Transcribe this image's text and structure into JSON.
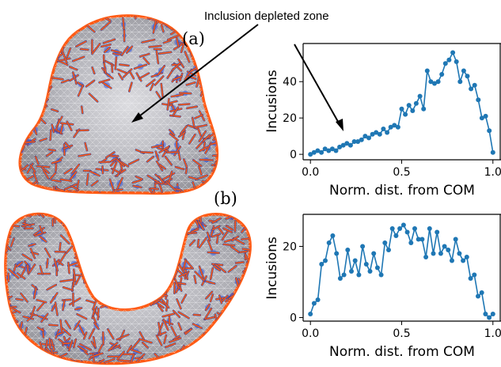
{
  "figure": {
    "annotation": "Inclusion depleted zone",
    "panel_labels": [
      "(a)",
      "(b)"
    ]
  },
  "colors": {
    "series": "#1f77b4",
    "inclusion": "#ff5a14",
    "membrane": "#c4c4c8",
    "mesh": "#e9e9ee",
    "protein_blue": "#3b5bdc",
    "shadow": "#8e8e95"
  },
  "chart_data": [
    {
      "type": "line",
      "panel": "(a)",
      "title": "",
      "xlabel": "Norm. dist. from COM",
      "ylabel": "Incusions",
      "xlim": [
        -0.04,
        1.04
      ],
      "ylim": [
        -3,
        61
      ],
      "xticks": [
        0.0,
        0.5,
        1.0
      ],
      "xtick_labels": [
        "0.0",
        "0.5",
        "1.0"
      ],
      "yticks": [
        0,
        20,
        40
      ],
      "ytick_labels": [
        "0",
        "20",
        "40"
      ],
      "grid": false,
      "series": [
        {
          "x": [
            0.0,
            0.02,
            0.04,
            0.06,
            0.08,
            0.1,
            0.12,
            0.14,
            0.16,
            0.18,
            0.2,
            0.22,
            0.24,
            0.26,
            0.28,
            0.3,
            0.32,
            0.34,
            0.36,
            0.38,
            0.4,
            0.42,
            0.44,
            0.46,
            0.48,
            0.5,
            0.52,
            0.54,
            0.56,
            0.58,
            0.6,
            0.62,
            0.64,
            0.66,
            0.68,
            0.7,
            0.72,
            0.74,
            0.76,
            0.78,
            0.8,
            0.82,
            0.84,
            0.86,
            0.88,
            0.9,
            0.92,
            0.94,
            0.96,
            0.98,
            1.0
          ],
          "y": [
            0,
            1,
            2,
            1,
            3,
            2,
            3,
            2,
            4,
            5,
            6,
            5,
            7,
            7,
            8,
            10,
            9,
            11,
            12,
            11,
            14,
            12,
            15,
            16,
            15,
            25,
            22,
            27,
            24,
            28,
            32,
            25,
            46,
            40,
            39,
            40,
            44,
            50,
            52,
            56,
            51,
            40,
            46,
            43,
            36,
            38,
            30,
            20,
            21,
            13,
            1
          ]
        }
      ]
    },
    {
      "type": "line",
      "panel": "(b)",
      "title": "",
      "xlabel": "Norm. dist. from COM",
      "ylabel": "Incusions",
      "xlim": [
        -0.04,
        1.04
      ],
      "ylim": [
        -1,
        29
      ],
      "xticks": [
        0.0,
        0.5,
        1.0
      ],
      "xtick_labels": [
        "0.0",
        "0.5",
        "1.0"
      ],
      "yticks": [
        0,
        20
      ],
      "ytick_labels": [
        "0",
        "20"
      ],
      "grid": false,
      "series": [
        {
          "x": [
            0.0,
            0.0204,
            0.0408,
            0.0612,
            0.0816,
            0.102,
            0.1224,
            0.1429,
            0.1633,
            0.1837,
            0.2041,
            0.2245,
            0.2449,
            0.2653,
            0.2857,
            0.3061,
            0.3265,
            0.3469,
            0.3673,
            0.3878,
            0.4082,
            0.4286,
            0.449,
            0.4694,
            0.4898,
            0.5102,
            0.5306,
            0.551,
            0.5714,
            0.5918,
            0.6122,
            0.6327,
            0.6531,
            0.6735,
            0.6939,
            0.7143,
            0.7347,
            0.7551,
            0.7755,
            0.7959,
            0.8163,
            0.8367,
            0.8571,
            0.8776,
            0.898,
            0.9184,
            0.9388,
            0.9592,
            0.9796,
            1.0
          ],
          "y": [
            1,
            4,
            5,
            15,
            16,
            21,
            23,
            18,
            11,
            12,
            19,
            13,
            16,
            12,
            20,
            15,
            13,
            18,
            14,
            12,
            21,
            19,
            25,
            23,
            25,
            26,
            24,
            21,
            25,
            22,
            22,
            17,
            25,
            18,
            24,
            18,
            20,
            19,
            16,
            22,
            18,
            16,
            17,
            11,
            12,
            6,
            7,
            1,
            0,
            1
          ]
        }
      ]
    }
  ]
}
